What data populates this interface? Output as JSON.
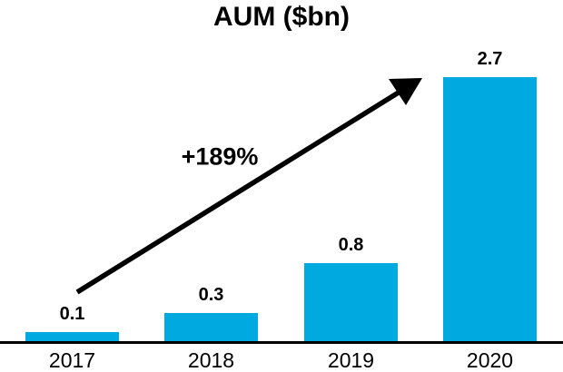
{
  "title": "AUM ($bn)",
  "annotation": {
    "growth_label": "+189%"
  },
  "colors": {
    "bar": "#00A9E0",
    "axis": "#000000",
    "text": "#000000",
    "background": "#FFFFFF"
  },
  "chart_data": {
    "type": "bar",
    "title": "AUM ($bn)",
    "categories": [
      "2017",
      "2018",
      "2019",
      "2020"
    ],
    "values": [
      0.1,
      0.3,
      0.8,
      2.7
    ],
    "data_labels": [
      "0.1",
      "0.3",
      "0.8",
      "2.7"
    ],
    "xlabel": "",
    "ylabel": "",
    "ylim": [
      0,
      3
    ],
    "grid": false,
    "legend": false,
    "annotations": [
      {
        "type": "arrow",
        "text": "+189%",
        "from_category": "2017",
        "to_category": "2020"
      }
    ]
  }
}
